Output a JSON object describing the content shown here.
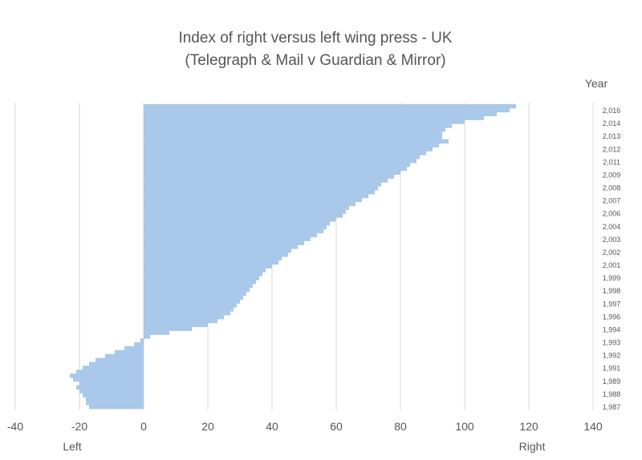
{
  "chart_data": {
    "type": "bar",
    "orientation": "horizontal",
    "title": "Index of right versus left wing press - UK",
    "subtitle": "(Telegraph & Mail v Guardian & Mirror)",
    "year_axis_title": "Year",
    "left_label": "Left",
    "right_label": "Right",
    "xlim": [
      -40,
      140
    ],
    "x_ticks": [
      "-40",
      "-20",
      "0",
      "20",
      "40",
      "60",
      "80",
      "100",
      "120",
      "140"
    ],
    "year_tick_labels": [
      "2,016",
      "2,014",
      "2,013",
      "2,012",
      "2,011",
      "2,009",
      "2,008",
      "2,007",
      "2,006",
      "2,004",
      "2,003",
      "2,002",
      "2,001",
      "1,999",
      "1,998",
      "1,997",
      "1,996",
      "1,994",
      "1,993",
      "1,992",
      "1,991",
      "1,989",
      "1,988",
      "1,987"
    ],
    "grid": "vertical",
    "bar_color": "#a9c8ea",
    "values": [
      116,
      114,
      110,
      106,
      100,
      96,
      94,
      93,
      93,
      95,
      92,
      90,
      88,
      86,
      85,
      83,
      82,
      80,
      78,
      76,
      74,
      73,
      72,
      70,
      68,
      66,
      64,
      63,
      62,
      60,
      58,
      57,
      56,
      54,
      52,
      50,
      48,
      46,
      45,
      43,
      42,
      40,
      38,
      37,
      36,
      35,
      34,
      33,
      32,
      31,
      30,
      29,
      28,
      27,
      25,
      23,
      20,
      15,
      8,
      2,
      -1,
      -3,
      -6,
      -9,
      -12,
      -15,
      -17,
      -19,
      -21,
      -23,
      -22,
      -20,
      -21,
      -20,
      -19,
      -18,
      -18,
      -17
    ]
  }
}
